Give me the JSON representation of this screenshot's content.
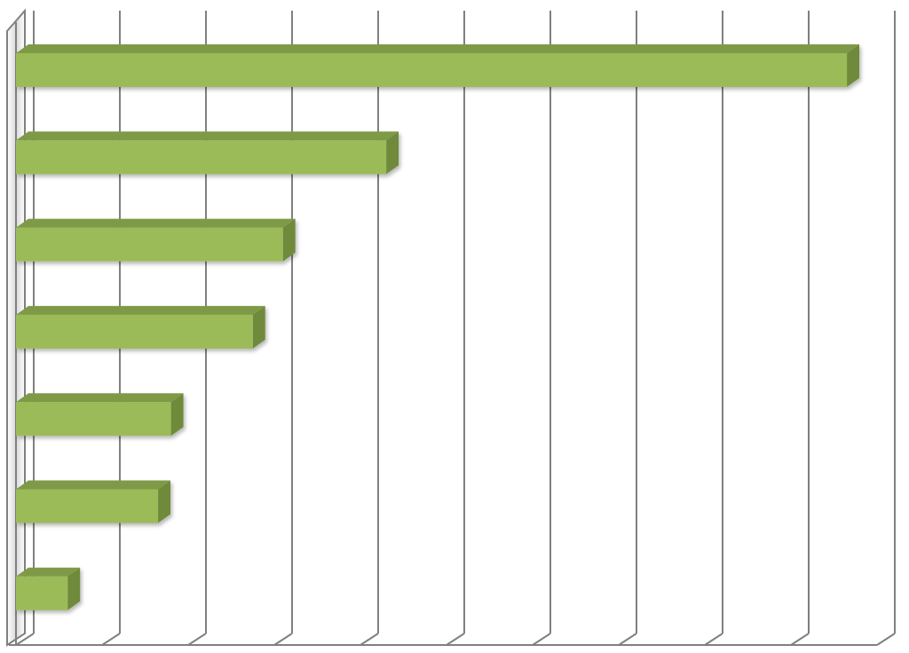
{
  "chart_data": {
    "type": "bar",
    "orientation": "horizontal",
    "style": "3d",
    "title": "",
    "xlabel": "",
    "ylabel": "",
    "categories": [
      "",
      "",
      "",
      "",
      "",
      "",
      ""
    ],
    "values": [
      9.65,
      4.3,
      3.1,
      2.75,
      1.8,
      1.65,
      0.6
    ],
    "xlim": [
      0,
      10
    ],
    "grid": true,
    "legend": "none",
    "tick_labels_visible": false
  },
  "colors": {
    "bar_front": "#9bbb59",
    "bar_top": "#7f9a47",
    "bar_side": "#6f8a3b",
    "gridline": "#808080",
    "background": "#ffffff"
  }
}
